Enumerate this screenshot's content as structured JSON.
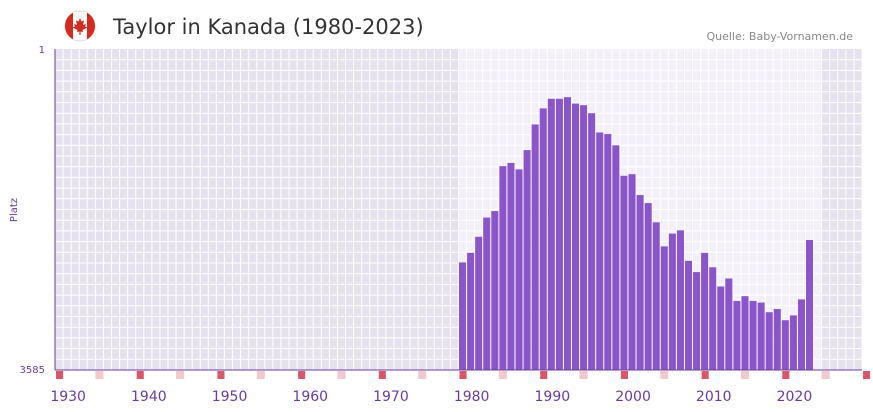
{
  "chart_data": {
    "type": "bar",
    "title": "Taylor in Kanada (1980-2023)",
    "source": "Quelle: Baby-Vornamen.de",
    "ylabel": "Platz",
    "y_top_label": "1",
    "y_bottom_label": "3585",
    "axis_top_rank": 1,
    "axis_bottom_rank": 3585,
    "x_range": [
      1928,
      2028
    ],
    "data_range": [
      1978,
      2022
    ],
    "x_tick_labels": [
      "1930",
      "1940",
      "1950",
      "1960",
      "1970",
      "1980",
      "1990",
      "2000",
      "2010",
      "2020"
    ],
    "x_tick_values": [
      1930,
      1940,
      1950,
      1960,
      1970,
      1980,
      1990,
      2000,
      2010,
      2020
    ],
    "decade_markers": [
      1928,
      1938,
      1948,
      1958,
      1968,
      1978,
      1988,
      1998,
      2008,
      2018,
      2028
    ],
    "half_decade_markers": [
      1933,
      1943,
      1953,
      1963,
      1973,
      1983,
      1993,
      2003,
      2013,
      2023
    ],
    "series": [
      {
        "name": "Taylor",
        "years": [
          1978,
          1979,
          1980,
          1981,
          1982,
          1983,
          1984,
          1985,
          1986,
          1987,
          1988,
          1989,
          1990,
          1991,
          1992,
          1993,
          1994,
          1995,
          1996,
          1997,
          1998,
          1999,
          2000,
          2001,
          2002,
          2003,
          2004,
          2005,
          2006,
          2007,
          2008,
          2009,
          2010,
          2011,
          2012,
          2013,
          2014,
          2015,
          2016,
          2017,
          2018,
          2019,
          2020,
          2021,
          2022
        ],
        "heights": [
          0.335,
          0.365,
          0.415,
          0.475,
          0.495,
          0.635,
          0.645,
          0.625,
          0.685,
          0.765,
          0.815,
          0.845,
          0.845,
          0.85,
          0.83,
          0.825,
          0.8,
          0.74,
          0.735,
          0.7,
          0.605,
          0.61,
          0.545,
          0.52,
          0.46,
          0.385,
          0.425,
          0.435,
          0.34,
          0.305,
          0.365,
          0.32,
          0.26,
          0.285,
          0.215,
          0.23,
          0.215,
          0.21,
          0.18,
          0.19,
          0.155,
          0.17,
          0.22,
          0.405,
          0.0
        ]
      }
    ],
    "colors": {
      "bar": "#8a55c8",
      "axis": "#6a3d9a",
      "title": "#333333",
      "source": "#888888",
      "label": "#6a3d9a",
      "marker_major": "#d9576a",
      "marker_minor": "#f2c9cf",
      "bg_outside": "#e6e1ee",
      "bg_inside": "#f4f0fa",
      "grid": "#ffffff"
    }
  }
}
